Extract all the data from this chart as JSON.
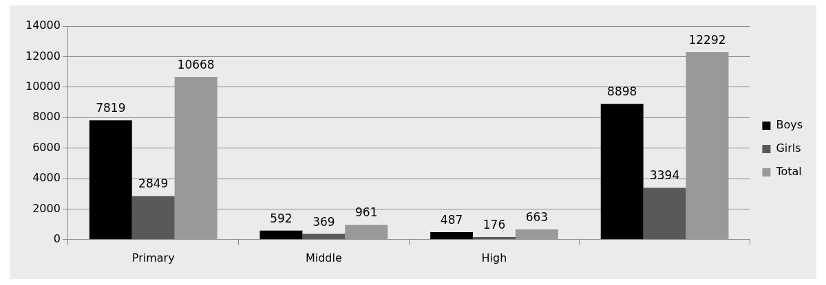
{
  "chart_data": {
    "type": "bar",
    "categories": [
      "Primary",
      "Middle",
      "High",
      null
    ],
    "series": [
      {
        "name": "Boys",
        "color": "#000000",
        "values": [
          7819,
          592,
          487,
          8898
        ]
      },
      {
        "name": "Girls",
        "color": "#595959",
        "values": [
          2849,
          369,
          176,
          3394
        ]
      },
      {
        "name": "Total",
        "color": "#999999",
        "values": [
          10668,
          961,
          663,
          12292
        ]
      }
    ],
    "ylim": [
      0,
      14000
    ],
    "yticks": [
      0,
      2000,
      4000,
      6000,
      8000,
      10000,
      12000,
      14000
    ],
    "grid": "y",
    "legend": "right",
    "data_labels": true
  }
}
